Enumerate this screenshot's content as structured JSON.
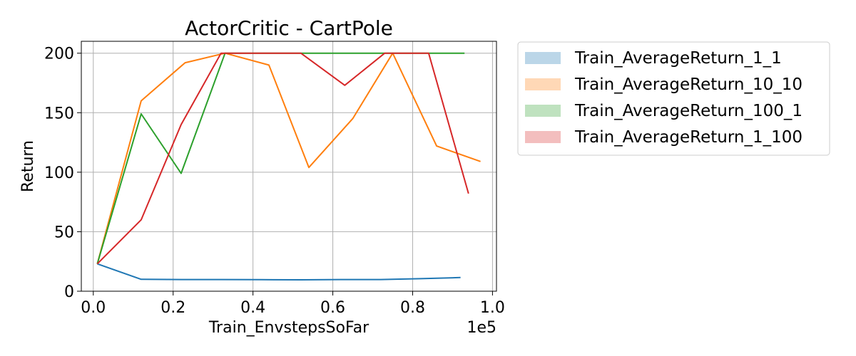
{
  "chart_data": {
    "type": "line",
    "title": "ActorCritic - CartPole",
    "xlabel": "Train_EnvstepsSoFar",
    "ylabel": "Return",
    "x_offset_label": "1e5",
    "xlim": [
      -0.03,
      1.01
    ],
    "ylim": [
      0,
      210
    ],
    "xticks": [
      0.0,
      0.2,
      0.4,
      0.6,
      0.8,
      1.0
    ],
    "xtick_labels": [
      "0.0",
      "0.2",
      "0.4",
      "0.6",
      "0.8",
      "1.0"
    ],
    "yticks": [
      0,
      50,
      100,
      150,
      200
    ],
    "ytick_labels": [
      "0",
      "50",
      "100",
      "150",
      "200"
    ],
    "grid": true,
    "legend": "outside-right",
    "series": [
      {
        "name": "Train_AverageReturn_1_1",
        "color": "#1f77b4",
        "x": [
          0.01,
          0.12,
          0.22,
          0.32,
          0.42,
          0.52,
          0.62,
          0.72,
          0.82,
          0.92
        ],
        "y": [
          23,
          10,
          9.8,
          9.8,
          9.7,
          9.6,
          9.8,
          9.8,
          10.5,
          11.5
        ]
      },
      {
        "name": "Train_AverageReturn_10_10",
        "color": "#ff7f0e",
        "x": [
          0.01,
          0.12,
          0.23,
          0.33,
          0.44,
          0.54,
          0.65,
          0.75,
          0.86,
          0.97
        ],
        "y": [
          23,
          160,
          192,
          200,
          190,
          104,
          145,
          200,
          122,
          109
        ]
      },
      {
        "name": "Train_AverageReturn_100_1",
        "color": "#2ca02c",
        "x": [
          0.01,
          0.12,
          0.22,
          0.33,
          0.43,
          0.53,
          0.63,
          0.73,
          0.83,
          0.93
        ],
        "y": [
          23,
          149,
          99,
          200,
          200,
          200,
          200,
          200,
          200,
          200
        ]
      },
      {
        "name": "Train_AverageReturn_1_100",
        "color": "#d62728",
        "x": [
          0.01,
          0.12,
          0.22,
          0.32,
          0.42,
          0.52,
          0.63,
          0.73,
          0.84,
          0.94
        ],
        "y": [
          23,
          60,
          140,
          200,
          200,
          200,
          173,
          200,
          200,
          82
        ]
      }
    ]
  }
}
